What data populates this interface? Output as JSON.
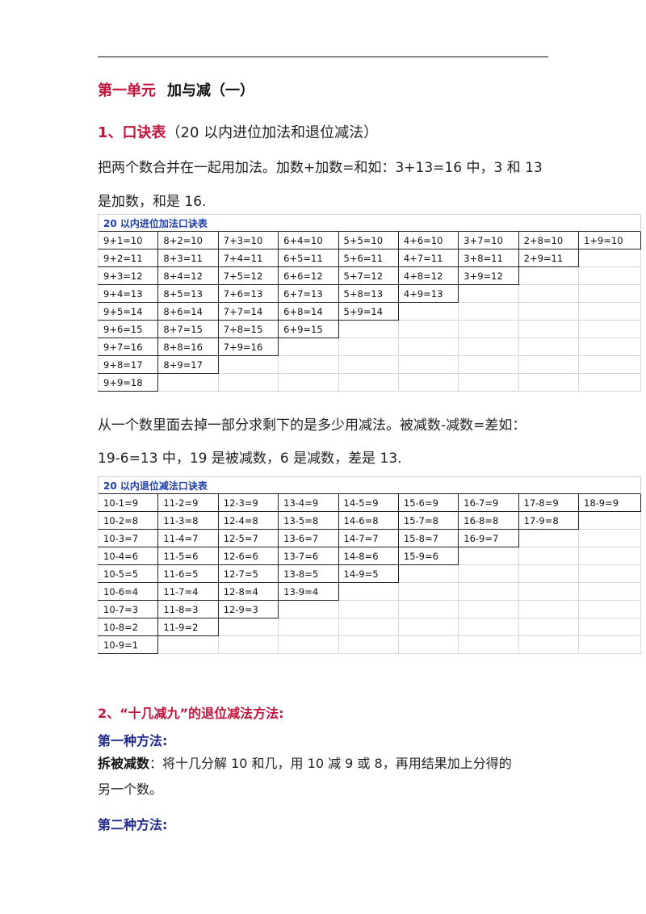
{
  "unit": {
    "label": "第一单元",
    "title": "加与减（一）"
  },
  "section1": {
    "number": "1、",
    "title": "口诀表",
    "note": "（20 以内进位加法和退位减法）"
  },
  "add_intro": {
    "line1": "把两个数合并在一起用加法。加数+加数=和如：3+13=16 中，3 和 13",
    "line2": "是加数，和是 16."
  },
  "add_table": {
    "caption": "20 以内进位加法口诀表",
    "columns": [
      [
        "9+1=10",
        "9+2=11",
        "9+3=12",
        "9+4=13",
        "9+5=14",
        "9+6=15",
        "9+7=16",
        "9+8=17",
        "9+9=18"
      ],
      [
        "8+2=10",
        "8+3=11",
        "8+4=12",
        "8+5=13",
        "8+6=14",
        "8+7=15",
        "8+8=16",
        "8+9=17"
      ],
      [
        "7+3=10",
        "7+4=11",
        "7+5=12",
        "7+6=13",
        "7+7=14",
        "7+8=15",
        "7+9=16"
      ],
      [
        "6+4=10",
        "6+5=11",
        "6+6=12",
        "6+7=13",
        "6+8=14",
        "6+9=15"
      ],
      [
        "5+5=10",
        "5+6=11",
        "5+7=12",
        "5+8=13",
        "5+9=14"
      ],
      [
        "4+6=10",
        "4+7=11",
        "4+8=12",
        "4+9=13"
      ],
      [
        "3+7=10",
        "3+8=11",
        "3+9=12"
      ],
      [
        "2+8=10",
        "2+9=11"
      ],
      [
        "1+9=10"
      ]
    ]
  },
  "sub_intro": {
    "line1": "从一个数里面去掉一部分求剩下的是多少用减法。被减数-减数=差如：",
    "line2": "19-6=13 中，19 是被减数，6 是减数，差是 13."
  },
  "sub_table": {
    "caption": "20 以内退位减法口诀表",
    "columns": [
      [
        "10-1=9",
        "10-2=8",
        "10-3=7",
        "10-4=6",
        "10-5=5",
        "10-6=4",
        "10-7=3",
        "10-8=2",
        "10-9=1"
      ],
      [
        "11-2=9",
        "11-3=8",
        "11-4=7",
        "11-5=6",
        "11-6=5",
        "11-7=4",
        "11-8=3",
        "11-9=2"
      ],
      [
        "12-3=9",
        "12-4=8",
        "12-5=7",
        "12-6=6",
        "12-7=5",
        "12-8=4",
        "12-9=3"
      ],
      [
        "13-4=9",
        "13-5=8",
        "13-6=7",
        "13-7=6",
        "13-8=5",
        "13-9=4"
      ],
      [
        "14-5=9",
        "14-6=8",
        "14-7=7",
        "14-8=6",
        "14-9=5"
      ],
      [
        "15-6=9",
        "15-7=8",
        "15-8=7",
        "15-9=6"
      ],
      [
        "16-7=9",
        "16-8=8",
        "16-9=7"
      ],
      [
        "17-8=9",
        "17-9=8"
      ],
      [
        "18-9=9"
      ]
    ]
  },
  "section2": {
    "title": "2、“十几减九”的退位减法方法:"
  },
  "method1": {
    "heading": "第一种方法:",
    "term": "拆被减数",
    "text": "：将十几分解 10 和几，用 10 减 9 或 8，再用结果加上分得的",
    "text2": "另一个数。"
  },
  "method2": {
    "heading": "第二种方法:"
  }
}
